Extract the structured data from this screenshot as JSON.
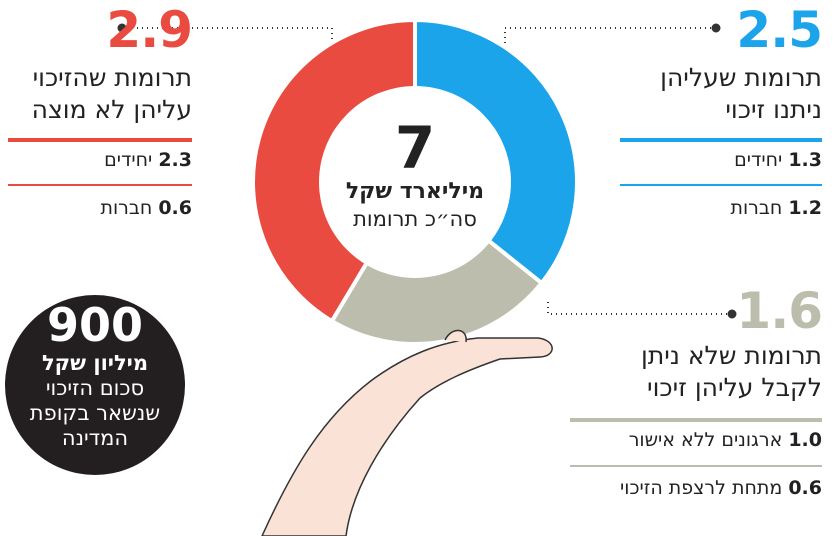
{
  "chart_data": {
    "type": "pie",
    "categories": [
      "תרומות שעליהן ניתנו זיכוי",
      "תרומות שלא ניתן לקבל עליהן זיכוי",
      "תרומות שהזיכוי עליהן לא מוצה"
    ],
    "values": [
      2.5,
      1.6,
      2.9
    ],
    "colors": [
      "#1ba4e9",
      "#bdbdae",
      "#e94b40"
    ],
    "total": 7,
    "total_unit": "מיליארד שקל",
    "total_label": "סה״כ תרומות",
    "breakdown": [
      {
        "values": [
          1.3,
          1.2
        ],
        "labels": [
          "יחידים",
          "חברות"
        ]
      },
      {
        "values": [
          1.0,
          0.6
        ],
        "value_labels": [
          "1.0",
          "0.6"
        ],
        "labels": [
          "ארגונים ללא אישור",
          "מתחת לרצפת הזיכוי"
        ]
      },
      {
        "values": [
          2.3,
          0.6
        ],
        "labels": [
          "יחידים",
          "חברות"
        ]
      }
    ],
    "note": {
      "value": 900,
      "unit": "מיליון שקל",
      "lines": [
        "סכום הזיכוי",
        "שנשאר בקופת",
        "המדינה"
      ]
    }
  }
}
